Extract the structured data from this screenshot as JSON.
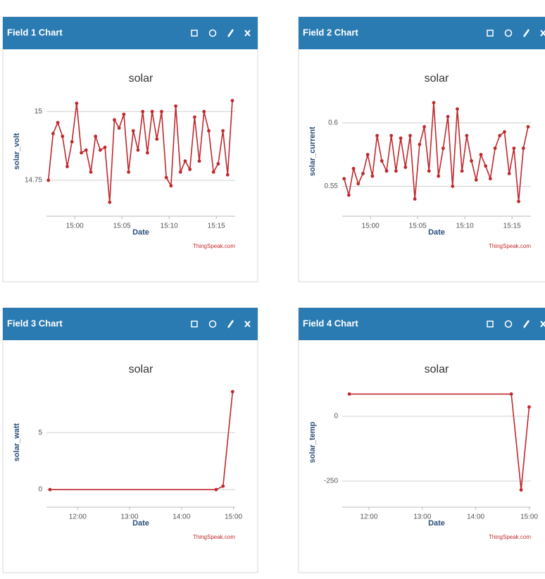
{
  "chart_data": [
    {
      "type": "line",
      "panel_title": "Field 1 Chart",
      "title": "solar",
      "x_label": "Date",
      "y_label": "solar_volt",
      "credit": "ThingSpeak.com",
      "color": "#c0282d",
      "grid": true,
      "x": [
        897.2,
        897.7,
        898.2,
        898.7,
        899.2,
        899.7,
        900.2,
        900.7,
        901.2,
        901.7,
        902.2,
        902.7,
        903.2,
        903.7,
        904.2,
        904.7,
        905.2,
        905.7,
        906.2,
        906.7,
        907.2,
        907.7,
        908.2,
        908.7,
        909.2,
        909.7,
        910.2,
        910.7,
        911.2,
        911.7,
        912.2,
        912.7,
        913.2,
        913.7,
        914.2,
        914.7,
        915.2,
        915.7,
        916.2,
        916.7
      ],
      "values": [
        14.75,
        14.92,
        14.96,
        14.91,
        14.8,
        14.89,
        15.03,
        14.85,
        14.86,
        14.78,
        14.91,
        14.86,
        14.87,
        14.67,
        14.97,
        14.94,
        14.99,
        14.78,
        14.93,
        14.86,
        15.0,
        14.85,
        15.0,
        14.9,
        15.0,
        14.76,
        14.73,
        15.02,
        14.78,
        14.82,
        14.79,
        14.98,
        14.82,
        15.0,
        14.93,
        14.78,
        14.81,
        14.93,
        14.77,
        15.04
      ],
      "xlim": [
        897,
        917
      ],
      "xticks": [
        {
          "value": 900,
          "label": "15:00"
        },
        {
          "value": 905,
          "label": "15:05"
        },
        {
          "value": 910,
          "label": "15:10"
        },
        {
          "value": 915,
          "label": "15:15"
        }
      ],
      "ylim": [
        14.65,
        15.06
      ],
      "yticks": [
        14.75,
        15
      ]
    },
    {
      "type": "line",
      "panel_title": "Field 2 Chart",
      "title": "solar",
      "x_label": "Date",
      "y_label": "solar_current",
      "credit": "ThingSpeak.com",
      "color": "#c0282d",
      "grid": true,
      "x": [
        897.2,
        897.7,
        898.2,
        898.7,
        899.2,
        899.7,
        900.2,
        900.7,
        901.2,
        901.7,
        902.2,
        902.7,
        903.2,
        903.7,
        904.2,
        904.7,
        905.2,
        905.7,
        906.2,
        906.7,
        907.2,
        907.7,
        908.2,
        908.7,
        909.2,
        909.7,
        910.2,
        910.7,
        911.2,
        911.7,
        912.2,
        912.7,
        913.2,
        913.7,
        914.2,
        914.7,
        915.2,
        915.7,
        916.2,
        916.7
      ],
      "values": [
        0.556,
        0.543,
        0.564,
        0.552,
        0.56,
        0.575,
        0.558,
        0.59,
        0.57,
        0.562,
        0.59,
        0.562,
        0.588,
        0.565,
        0.59,
        0.54,
        0.583,
        0.597,
        0.562,
        0.616,
        0.558,
        0.58,
        0.605,
        0.55,
        0.611,
        0.562,
        0.59,
        0.57,
        0.555,
        0.575,
        0.566,
        0.556,
        0.58,
        0.59,
        0.593,
        0.56,
        0.58,
        0.538,
        0.58,
        0.597
      ],
      "xlim": [
        897,
        917
      ],
      "xticks": [
        {
          "value": 900,
          "label": "15:00"
        },
        {
          "value": 905,
          "label": "15:05"
        },
        {
          "value": 910,
          "label": "15:10"
        },
        {
          "value": 915,
          "label": "15:15"
        }
      ],
      "ylim": [
        0.533,
        0.622
      ],
      "yticks": [
        0.55,
        0.6
      ]
    },
    {
      "type": "line",
      "panel_title": "Field 3 Chart",
      "title": "solar",
      "x_label": "Date",
      "y_label": "solar_watt",
      "credit": "ThingSpeak.com",
      "color": "#c0282d",
      "grid": true,
      "x": [
        688,
        880,
        888,
        899
      ],
      "values": [
        0,
        0,
        0.3,
        8.6
      ],
      "xlim": [
        684,
        902
      ],
      "xticks": [
        {
          "value": 720,
          "label": "12:00"
        },
        {
          "value": 780,
          "label": "13:00"
        },
        {
          "value": 840,
          "label": "14:00"
        },
        {
          "value": 900,
          "label": "15:00"
        }
      ],
      "ylim": [
        -0.8,
        9.1
      ],
      "yticks": [
        0,
        5
      ]
    },
    {
      "type": "line",
      "panel_title": "Field 4 Chart",
      "title": "solar",
      "x_label": "Date",
      "y_label": "solar_temp",
      "credit": "ThingSpeak.com",
      "color": "#c0282d",
      "grid": true,
      "x": [
        698,
        880,
        891,
        900
      ],
      "values": [
        86,
        86,
        -284,
        36
      ],
      "xlim": [
        690,
        902
      ],
      "xticks": [
        {
          "value": 720,
          "label": "12:00"
        },
        {
          "value": 780,
          "label": "13:00"
        },
        {
          "value": 840,
          "label": "14:00"
        },
        {
          "value": 900,
          "label": "15:00"
        }
      ],
      "ylim": [
        -318,
        117
      ],
      "yticks": [
        -250,
        0
      ]
    }
  ]
}
